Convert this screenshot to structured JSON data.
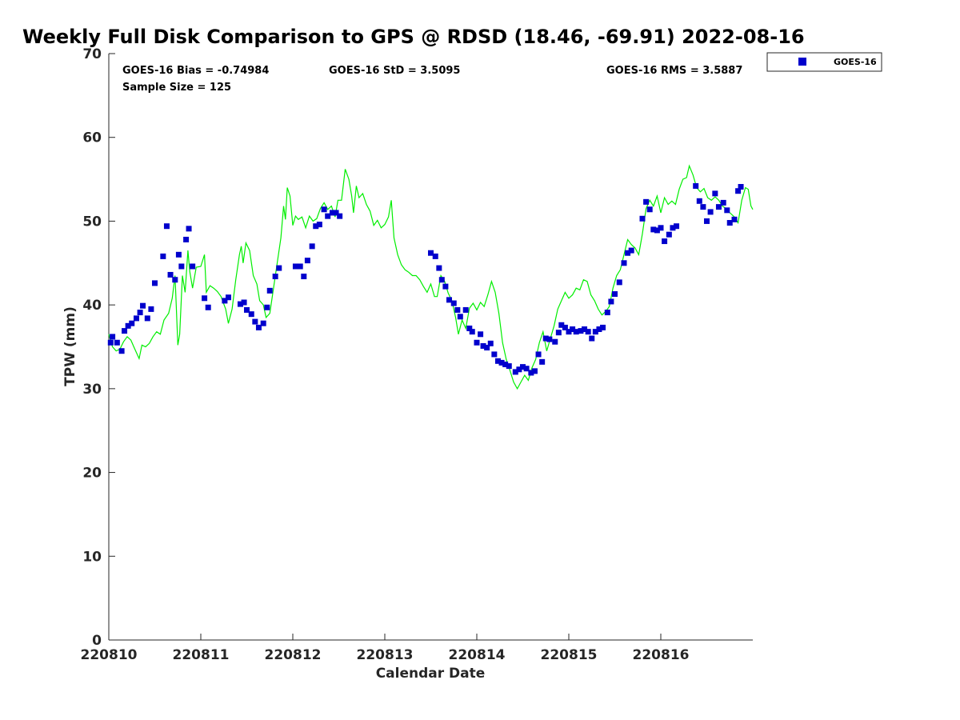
{
  "chart_data": {
    "type": "scatter",
    "title": "Weekly Full Disk Comparison to GPS @ RDSD (18.46, -69.91) 2022-08-16",
    "xlabel": "Calendar Date",
    "ylabel": "TPW (mm)",
    "xlim": [
      0,
      7.0
    ],
    "ylim": [
      0,
      70
    ],
    "xticks": [
      {
        "value": 0,
        "label": "220810"
      },
      {
        "value": 1,
        "label": "220811"
      },
      {
        "value": 2,
        "label": "220812"
      },
      {
        "value": 3,
        "label": "220813"
      },
      {
        "value": 4,
        "label": "220814"
      },
      {
        "value": 5,
        "label": "220815"
      },
      {
        "value": 6,
        "label": "220816"
      }
    ],
    "yticks": [
      0,
      10,
      20,
      30,
      40,
      50,
      60,
      70
    ],
    "stats": {
      "bias": "GOES-16 Bias = -0.74984",
      "std": "GOES-16 StD = 3.5095",
      "rms": "GOES-16 RMS = 3.5887",
      "sample": "Sample Size = 125"
    },
    "legend": {
      "label": "GOES-16",
      "position": "top-right outside"
    },
    "series": [
      {
        "name": "GOES-16",
        "kind": "scatter",
        "color": "#0000cc",
        "points": [
          [
            0.02,
            35.5
          ],
          [
            0.04,
            36.2
          ],
          [
            0.09,
            35.5
          ],
          [
            0.14,
            34.5
          ],
          [
            0.17,
            36.9
          ],
          [
            0.21,
            37.5
          ],
          [
            0.25,
            37.8
          ],
          [
            0.3,
            38.4
          ],
          [
            0.34,
            39.1
          ],
          [
            0.37,
            39.9
          ],
          [
            0.42,
            38.4
          ],
          [
            0.46,
            39.5
          ],
          [
            0.5,
            42.6
          ],
          [
            0.59,
            45.8
          ],
          [
            0.63,
            49.4
          ],
          [
            0.67,
            43.6
          ],
          [
            0.72,
            43.0
          ],
          [
            0.76,
            46.0
          ],
          [
            0.79,
            44.6
          ],
          [
            0.84,
            47.8
          ],
          [
            0.87,
            49.1
          ],
          [
            0.91,
            44.6
          ],
          [
            1.04,
            40.8
          ],
          [
            1.08,
            39.7
          ],
          [
            1.26,
            40.5
          ],
          [
            1.3,
            40.9
          ],
          [
            1.43,
            40.1
          ],
          [
            1.47,
            40.3
          ],
          [
            1.5,
            39.4
          ],
          [
            1.55,
            38.9
          ],
          [
            1.59,
            38.0
          ],
          [
            1.63,
            37.3
          ],
          [
            1.68,
            37.8
          ],
          [
            1.72,
            39.7
          ],
          [
            1.75,
            41.7
          ],
          [
            1.81,
            43.4
          ],
          [
            1.85,
            44.4
          ],
          [
            2.03,
            44.6
          ],
          [
            2.08,
            44.6
          ],
          [
            2.12,
            43.4
          ],
          [
            2.16,
            45.3
          ],
          [
            2.21,
            47.0
          ],
          [
            2.25,
            49.4
          ],
          [
            2.29,
            49.6
          ],
          [
            2.34,
            51.4
          ],
          [
            2.38,
            50.6
          ],
          [
            2.43,
            51.0
          ],
          [
            2.47,
            51.0
          ],
          [
            2.51,
            50.6
          ],
          [
            3.5,
            46.2
          ],
          [
            3.55,
            45.8
          ],
          [
            3.59,
            44.4
          ],
          [
            3.62,
            43.0
          ],
          [
            3.66,
            42.2
          ],
          [
            3.7,
            40.6
          ],
          [
            3.75,
            40.2
          ],
          [
            3.79,
            39.4
          ],
          [
            3.82,
            38.6
          ],
          [
            3.88,
            39.4
          ],
          [
            3.92,
            37.2
          ],
          [
            3.95,
            36.8
          ],
          [
            4.0,
            35.5
          ],
          [
            4.04,
            36.5
          ],
          [
            4.07,
            35.1
          ],
          [
            4.11,
            34.9
          ],
          [
            4.15,
            35.4
          ],
          [
            4.19,
            34.1
          ],
          [
            4.23,
            33.3
          ],
          [
            4.27,
            33.1
          ],
          [
            4.31,
            32.9
          ],
          [
            4.35,
            32.7
          ],
          [
            4.42,
            32.0
          ],
          [
            4.46,
            32.3
          ],
          [
            4.5,
            32.6
          ],
          [
            4.54,
            32.4
          ],
          [
            4.59,
            31.9
          ],
          [
            4.63,
            32.1
          ],
          [
            4.67,
            34.1
          ],
          [
            4.71,
            33.2
          ],
          [
            4.75,
            36.0
          ],
          [
            4.79,
            35.9
          ],
          [
            4.85,
            35.6
          ],
          [
            4.89,
            36.7
          ],
          [
            4.92,
            37.6
          ],
          [
            4.96,
            37.3
          ],
          [
            5.0,
            36.8
          ],
          [
            5.04,
            37.1
          ],
          [
            5.08,
            36.8
          ],
          [
            5.13,
            36.9
          ],
          [
            5.17,
            37.1
          ],
          [
            5.21,
            36.8
          ],
          [
            5.25,
            36.0
          ],
          [
            5.29,
            36.8
          ],
          [
            5.33,
            37.1
          ],
          [
            5.37,
            37.3
          ],
          [
            5.42,
            39.1
          ],
          [
            5.46,
            40.4
          ],
          [
            5.5,
            41.3
          ],
          [
            5.55,
            42.7
          ],
          [
            5.6,
            45.0
          ],
          [
            5.64,
            46.2
          ],
          [
            5.68,
            46.5
          ],
          [
            5.8,
            50.3
          ],
          [
            5.84,
            52.3
          ],
          [
            5.88,
            51.4
          ],
          [
            5.92,
            49.0
          ],
          [
            5.96,
            48.9
          ],
          [
            6.0,
            49.2
          ],
          [
            6.04,
            47.6
          ],
          [
            6.09,
            48.4
          ],
          [
            6.13,
            49.2
          ],
          [
            6.17,
            49.4
          ],
          [
            6.38,
            54.2
          ],
          [
            6.42,
            52.4
          ],
          [
            6.46,
            51.7
          ],
          [
            6.5,
            50.0
          ],
          [
            6.54,
            51.1
          ],
          [
            6.59,
            53.3
          ],
          [
            6.63,
            51.7
          ],
          [
            6.68,
            52.2
          ],
          [
            6.72,
            51.3
          ],
          [
            6.75,
            49.8
          ],
          [
            6.8,
            50.2
          ],
          [
            6.84,
            53.6
          ],
          [
            6.87,
            54.1
          ]
        ]
      },
      {
        "name": "GPS",
        "kind": "line",
        "color": "#00ee00",
        "points": [
          [
            0.0,
            36.5
          ],
          [
            0.04,
            35.0
          ],
          [
            0.08,
            34.5
          ],
          [
            0.12,
            34.7
          ],
          [
            0.16,
            35.6
          ],
          [
            0.2,
            36.2
          ],
          [
            0.24,
            35.8
          ],
          [
            0.28,
            34.8
          ],
          [
            0.33,
            33.6
          ],
          [
            0.36,
            35.2
          ],
          [
            0.4,
            35.0
          ],
          [
            0.44,
            35.4
          ],
          [
            0.48,
            36.2
          ],
          [
            0.52,
            36.8
          ],
          [
            0.56,
            36.5
          ],
          [
            0.6,
            38.2
          ],
          [
            0.65,
            39.0
          ],
          [
            0.69,
            40.8
          ],
          [
            0.72,
            43.5
          ],
          [
            0.75,
            35.2
          ],
          [
            0.77,
            36.5
          ],
          [
            0.8,
            43.5
          ],
          [
            0.83,
            41.5
          ],
          [
            0.86,
            46.5
          ],
          [
            0.88,
            44.0
          ],
          [
            0.91,
            42.0
          ],
          [
            0.95,
            44.5
          ],
          [
            1.0,
            44.6
          ],
          [
            1.04,
            46.0
          ],
          [
            1.06,
            41.5
          ],
          [
            1.1,
            42.3
          ],
          [
            1.14,
            42.0
          ],
          [
            1.18,
            41.6
          ],
          [
            1.22,
            41.0
          ],
          [
            1.27,
            39.5
          ],
          [
            1.3,
            37.8
          ],
          [
            1.34,
            39.5
          ],
          [
            1.38,
            43.0
          ],
          [
            1.42,
            46.0
          ],
          [
            1.44,
            47.0
          ],
          [
            1.46,
            45.0
          ],
          [
            1.49,
            47.4
          ],
          [
            1.53,
            46.5
          ],
          [
            1.57,
            43.5
          ],
          [
            1.61,
            42.5
          ],
          [
            1.64,
            40.5
          ],
          [
            1.68,
            40.0
          ],
          [
            1.71,
            38.5
          ],
          [
            1.75,
            39.0
          ],
          [
            1.79,
            42.0
          ],
          [
            1.83,
            45.0
          ],
          [
            1.87,
            48.0
          ],
          [
            1.9,
            51.8
          ],
          [
            1.92,
            50.2
          ],
          [
            1.94,
            54.0
          ],
          [
            1.97,
            53.0
          ],
          [
            2.0,
            49.5
          ],
          [
            2.03,
            50.6
          ],
          [
            2.06,
            50.2
          ],
          [
            2.1,
            50.5
          ],
          [
            2.14,
            49.2
          ],
          [
            2.18,
            50.6
          ],
          [
            2.22,
            50.0
          ],
          [
            2.26,
            50.3
          ],
          [
            2.3,
            51.5
          ],
          [
            2.34,
            52.2
          ],
          [
            2.38,
            51.4
          ],
          [
            2.42,
            51.8
          ],
          [
            2.46,
            50.5
          ],
          [
            2.49,
            52.5
          ],
          [
            2.53,
            52.5
          ],
          [
            2.57,
            56.2
          ],
          [
            2.61,
            55.0
          ],
          [
            2.64,
            53.0
          ],
          [
            2.66,
            51.0
          ],
          [
            2.69,
            54.2
          ],
          [
            2.72,
            52.8
          ],
          [
            2.76,
            53.3
          ],
          [
            2.8,
            52.0
          ],
          [
            2.84,
            51.2
          ],
          [
            2.88,
            49.5
          ],
          [
            2.92,
            50.1
          ],
          [
            2.96,
            49.2
          ],
          [
            3.0,
            49.6
          ],
          [
            3.04,
            50.5
          ],
          [
            3.07,
            52.5
          ],
          [
            3.1,
            48.0
          ],
          [
            3.14,
            46.0
          ],
          [
            3.18,
            44.8
          ],
          [
            3.22,
            44.2
          ],
          [
            3.26,
            43.9
          ],
          [
            3.3,
            43.5
          ],
          [
            3.34,
            43.5
          ],
          [
            3.38,
            43.0
          ],
          [
            3.42,
            42.2
          ],
          [
            3.46,
            41.5
          ],
          [
            3.5,
            42.5
          ],
          [
            3.54,
            41.0
          ],
          [
            3.57,
            41.0
          ],
          [
            3.61,
            43.5
          ],
          [
            3.65,
            42.8
          ],
          [
            3.69,
            41.4
          ],
          [
            3.73,
            40.5
          ],
          [
            3.77,
            38.5
          ],
          [
            3.8,
            36.5
          ],
          [
            3.84,
            38.2
          ],
          [
            3.88,
            37.2
          ],
          [
            3.92,
            39.6
          ],
          [
            3.96,
            40.2
          ],
          [
            4.0,
            39.4
          ],
          [
            4.04,
            40.3
          ],
          [
            4.08,
            39.8
          ],
          [
            4.12,
            41.2
          ],
          [
            4.16,
            42.8
          ],
          [
            4.2,
            41.5
          ],
          [
            4.24,
            39.0
          ],
          [
            4.28,
            35.5
          ],
          [
            4.32,
            33.5
          ],
          [
            4.36,
            32.2
          ],
          [
            4.4,
            30.8
          ],
          [
            4.44,
            30.0
          ],
          [
            4.48,
            30.8
          ],
          [
            4.52,
            31.6
          ],
          [
            4.56,
            31.0
          ],
          [
            4.6,
            32.5
          ],
          [
            4.64,
            33.5
          ],
          [
            4.68,
            35.5
          ],
          [
            4.72,
            36.8
          ],
          [
            4.76,
            34.5
          ],
          [
            4.8,
            36.0
          ],
          [
            4.84,
            37.5
          ],
          [
            4.88,
            39.5
          ],
          [
            4.92,
            40.5
          ],
          [
            4.96,
            41.5
          ],
          [
            5.0,
            40.8
          ],
          [
            5.04,
            41.2
          ],
          [
            5.08,
            42.0
          ],
          [
            5.12,
            41.8
          ],
          [
            5.16,
            43.0
          ],
          [
            5.2,
            42.8
          ],
          [
            5.24,
            41.2
          ],
          [
            5.28,
            40.5
          ],
          [
            5.32,
            39.5
          ],
          [
            5.36,
            38.8
          ],
          [
            5.4,
            39.2
          ],
          [
            5.44,
            39.8
          ],
          [
            5.48,
            42.0
          ],
          [
            5.52,
            43.5
          ],
          [
            5.56,
            44.2
          ],
          [
            5.6,
            46.0
          ],
          [
            5.64,
            47.8
          ],
          [
            5.68,
            47.2
          ],
          [
            5.72,
            46.8
          ],
          [
            5.76,
            46.0
          ],
          [
            5.8,
            48.5
          ],
          [
            5.84,
            51.5
          ],
          [
            5.88,
            52.5
          ],
          [
            5.92,
            51.8
          ],
          [
            5.96,
            53.0
          ],
          [
            6.0,
            51.0
          ],
          [
            6.04,
            52.8
          ],
          [
            6.08,
            52.0
          ],
          [
            6.12,
            52.4
          ],
          [
            6.16,
            52.0
          ],
          [
            6.2,
            53.8
          ],
          [
            6.24,
            55.0
          ],
          [
            6.28,
            55.2
          ],
          [
            6.31,
            56.6
          ],
          [
            6.35,
            55.5
          ],
          [
            6.39,
            54.0
          ],
          [
            6.43,
            53.5
          ],
          [
            6.47,
            53.9
          ],
          [
            6.51,
            52.8
          ],
          [
            6.55,
            52.5
          ],
          [
            6.59,
            52.9
          ],
          [
            6.63,
            52.5
          ],
          [
            6.67,
            51.8
          ],
          [
            6.71,
            51.5
          ],
          [
            6.75,
            51.0
          ],
          [
            6.8,
            50.5
          ],
          [
            6.84,
            49.8
          ],
          [
            6.88,
            52.5
          ],
          [
            6.92,
            54.0
          ],
          [
            6.95,
            53.8
          ],
          [
            6.98,
            51.8
          ],
          [
            7.0,
            51.4
          ]
        ]
      }
    ]
  }
}
